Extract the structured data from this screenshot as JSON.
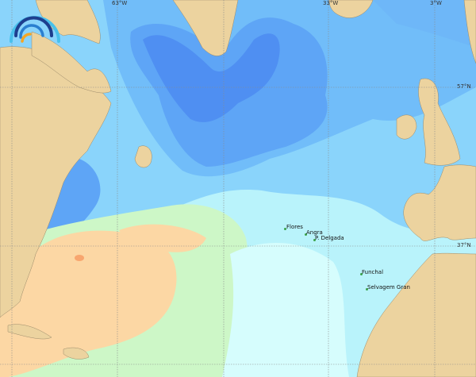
{
  "map": {
    "colors": {
      "land": "#ecd39f",
      "deep_blue": "#4f8ff2",
      "mid_blue": "#61a8f7",
      "light_blue": "#78c8fb",
      "pale_blue": "#a3e6fd",
      "cyan": "#c2f7fd",
      "green": "#cdf7c7",
      "orange": "#fcd7a4",
      "dark_orange": "#f8a66f",
      "station": "#3aa24a"
    },
    "grid_labels": {
      "lon": [
        "63°W",
        "33°W",
        "3°W"
      ],
      "lat": [
        "57°N",
        "37°N"
      ]
    },
    "places": [
      "Flores",
      "Angra",
      "P. Delgada",
      "Funchal",
      "Selvagem Gran"
    ],
    "logo": "wave-arcs-logo"
  }
}
